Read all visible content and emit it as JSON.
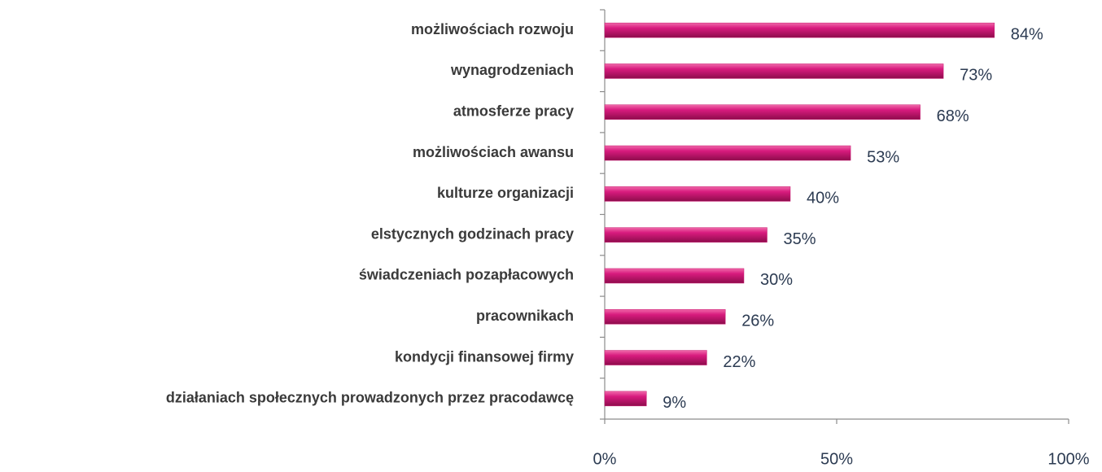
{
  "chart_data": {
    "type": "bar",
    "orientation": "horizontal",
    "categories": [
      "możliwościach rozwoju",
      "wynagrodzeniach",
      "atmosferze pracy",
      "możliwościach awansu",
      "kulturze organizacji",
      "elstycznych godzinach pracy",
      "świadczeniach pozapłacowych",
      "pracownikach",
      "kondycji finansowej firmy",
      "działaniach społecznych prowadzonych przez pracodawcę"
    ],
    "values": [
      84,
      73,
      68,
      53,
      40,
      35,
      30,
      26,
      22,
      9
    ],
    "value_labels": [
      "84%",
      "73%",
      "68%",
      "53%",
      "40%",
      "35%",
      "30%",
      "26%",
      "22%",
      "9%"
    ],
    "color": "#c8176f",
    "xlim": [
      0,
      100
    ],
    "xticks": [
      {
        "value": 0,
        "label": "0%"
      },
      {
        "value": 50,
        "label": "50%"
      },
      {
        "value": 100,
        "label": "100%"
      }
    ]
  }
}
